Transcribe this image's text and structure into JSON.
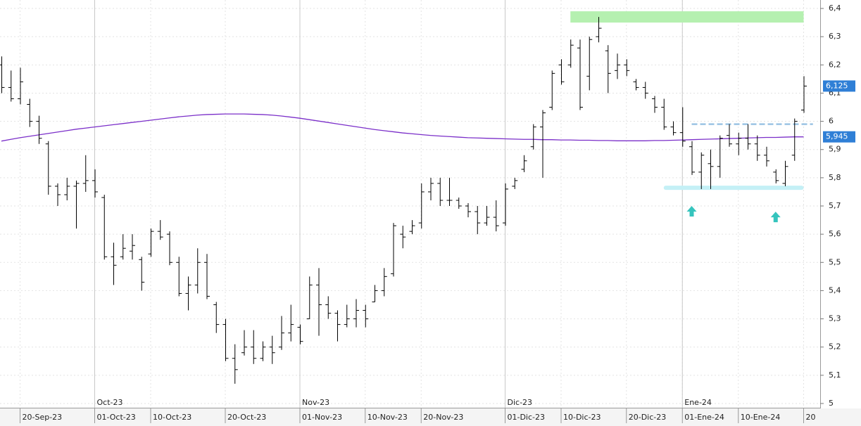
{
  "chart_data": {
    "type": "ohlc",
    "color": "#000000",
    "grid": true,
    "categories": [
      null,
      null,
      "20-Sep-23",
      null,
      null,
      null,
      null,
      null,
      null,
      null,
      "01-Oct-23",
      null,
      null,
      null,
      null,
      null,
      "10-Oct-23",
      null,
      null,
      null,
      null,
      null,
      null,
      null,
      "20-Oct-23",
      null,
      null,
      null,
      null,
      null,
      null,
      null,
      "01-Nov-23",
      null,
      null,
      null,
      null,
      null,
      null,
      "10-Nov-23",
      null,
      null,
      null,
      null,
      null,
      "20-Nov-23",
      null,
      null,
      null,
      null,
      null,
      null,
      null,
      null,
      "01-Dic-23",
      null,
      null,
      null,
      null,
      null,
      "10-Dic-23",
      null,
      null,
      null,
      null,
      null,
      null,
      "20-Dic-23",
      null,
      null,
      null,
      null,
      null,
      "01-Ene-24",
      null,
      null,
      null,
      null,
      null,
      "10-Ene-24",
      null,
      null,
      null,
      null,
      null,
      null,
      "20"
    ],
    "month_labels": [
      null,
      null,
      null,
      null,
      null,
      null,
      null,
      null,
      null,
      null,
      "Oct-23",
      null,
      null,
      null,
      null,
      null,
      null,
      null,
      null,
      null,
      null,
      null,
      null,
      null,
      null,
      null,
      null,
      null,
      null,
      null,
      null,
      null,
      "Nov-23",
      null,
      null,
      null,
      null,
      null,
      null,
      null,
      null,
      null,
      null,
      null,
      null,
      null,
      null,
      null,
      null,
      null,
      null,
      null,
      null,
      null,
      "Dic-23",
      null,
      null,
      null,
      null,
      null,
      null,
      null,
      null,
      null,
      null,
      null,
      null,
      null,
      null,
      null,
      null,
      null,
      null,
      "Ene-24",
      null,
      null,
      null,
      null,
      null,
      null,
      null,
      null,
      null,
      null,
      null,
      null,
      null
    ],
    "open": [
      6.2,
      6.12,
      6.08,
      6.06,
      6.0,
      5.92,
      5.77,
      5.74,
      5.77,
      5.78,
      5.79,
      5.73,
      5.52,
      5.52,
      5.54,
      5.51,
      5.53,
      5.61,
      5.6,
      5.5,
      5.39,
      5.42,
      5.5,
      5.35,
      5.28,
      5.16,
      5.18,
      5.2,
      5.16,
      5.2,
      5.2,
      5.25,
      5.27,
      5.3,
      5.42,
      5.35,
      5.32,
      5.28,
      5.3,
      5.33,
      5.36,
      5.4,
      5.46,
      5.6,
      5.61,
      5.64,
      5.75,
      5.78,
      5.72,
      5.72,
      5.7,
      5.68,
      5.64,
      5.66,
      5.64,
      5.77,
      5.83,
      5.91,
      5.98,
      6.05,
      6.2,
      6.2,
      6.26,
      6.16,
      6.3,
      6.25,
      6.18,
      6.2,
      6.14,
      6.12,
      6.08,
      6.05,
      5.98,
      5.96,
      5.91,
      5.82,
      5.85,
      5.84,
      5.95,
      5.92,
      5.94,
      5.92,
      5.88,
      5.82,
      5.78,
      5.88,
      6.04
    ],
    "high": [
      6.23,
      6.18,
      6.19,
      6.08,
      6.02,
      5.93,
      5.78,
      5.8,
      5.79,
      5.88,
      5.83,
      5.74,
      5.57,
      5.6,
      5.6,
      5.52,
      5.62,
      5.65,
      5.61,
      5.52,
      5.45,
      5.55,
      5.53,
      5.36,
      5.3,
      5.21,
      5.26,
      5.26,
      5.22,
      5.24,
      5.31,
      5.35,
      5.28,
      5.45,
      5.48,
      5.38,
      5.33,
      5.35,
      5.37,
      5.35,
      5.42,
      5.48,
      5.64,
      5.63,
      5.65,
      5.78,
      5.8,
      5.8,
      5.8,
      5.73,
      5.71,
      5.7,
      5.7,
      5.72,
      5.78,
      5.8,
      5.88,
      5.99,
      6.04,
      6.18,
      6.22,
      6.29,
      6.29,
      6.3,
      6.37,
      6.27,
      6.24,
      6.22,
      6.15,
      6.14,
      6.09,
      6.08,
      6.0,
      6.05,
      5.93,
      5.89,
      5.9,
      5.95,
      5.99,
      5.96,
      5.99,
      5.95,
      5.91,
      5.83,
      5.86,
      6.01,
      6.16
    ],
    "low": [
      6.1,
      6.07,
      6.06,
      5.98,
      5.92,
      5.74,
      5.7,
      5.72,
      5.62,
      5.75,
      5.73,
      5.51,
      5.42,
      5.51,
      5.51,
      5.4,
      5.52,
      5.58,
      5.49,
      5.38,
      5.33,
      5.39,
      5.37,
      5.25,
      5.15,
      5.07,
      5.17,
      5.14,
      5.15,
      5.14,
      5.19,
      5.22,
      5.21,
      5.3,
      5.24,
      5.3,
      5.22,
      5.27,
      5.27,
      5.27,
      5.36,
      5.38,
      5.45,
      5.55,
      5.6,
      5.62,
      5.72,
      5.7,
      5.7,
      5.69,
      5.66,
      5.6,
      5.63,
      5.61,
      5.63,
      5.76,
      5.82,
      5.9,
      5.8,
      6.04,
      6.13,
      6.19,
      6.04,
      6.11,
      6.28,
      6.1,
      6.15,
      6.16,
      6.11,
      6.08,
      6.03,
      5.97,
      5.95,
      5.91,
      5.81,
      5.76,
      5.76,
      5.8,
      5.91,
      5.88,
      5.9,
      5.86,
      5.84,
      5.78,
      5.77,
      5.86,
      6.03
    ],
    "close": [
      6.12,
      6.08,
      6.14,
      6.0,
      5.94,
      5.77,
      5.74,
      5.77,
      5.78,
      5.79,
      5.75,
      5.52,
      5.49,
      5.55,
      5.56,
      5.43,
      5.61,
      5.59,
      5.5,
      5.39,
      5.42,
      5.5,
      5.38,
      5.28,
      5.16,
      5.12,
      5.2,
      5.16,
      5.2,
      5.18,
      5.25,
      5.28,
      5.22,
      5.42,
      5.35,
      5.32,
      5.28,
      5.3,
      5.33,
      5.3,
      5.4,
      5.45,
      5.63,
      5.59,
      5.63,
      5.75,
      5.78,
      5.72,
      5.72,
      5.7,
      5.68,
      5.64,
      5.66,
      5.63,
      5.76,
      5.79,
      5.86,
      5.98,
      6.03,
      6.17,
      6.14,
      6.27,
      6.05,
      6.29,
      6.33,
      6.17,
      6.2,
      6.18,
      6.12,
      6.1,
      6.05,
      5.98,
      5.96,
      5.93,
      5.82,
      5.88,
      5.84,
      5.94,
      5.92,
      5.94,
      5.92,
      5.88,
      5.86,
      5.79,
      5.84,
      6.0,
      6.125
    ],
    "moving_average": [
      5.93,
      5.936,
      5.942,
      5.947,
      5.952,
      5.957,
      5.962,
      5.967,
      5.972,
      5.976,
      5.98,
      5.984,
      5.988,
      5.992,
      5.996,
      6.0,
      6.004,
      6.008,
      6.012,
      6.016,
      6.019,
      6.022,
      6.024,
      6.025,
      6.026,
      6.026,
      6.026,
      6.025,
      6.024,
      6.022,
      6.019,
      6.015,
      6.011,
      6.006,
      6.001,
      5.996,
      5.991,
      5.986,
      5.981,
      5.976,
      5.971,
      5.967,
      5.963,
      5.959,
      5.956,
      5.953,
      5.95,
      5.948,
      5.946,
      5.944,
      5.942,
      5.941,
      5.94,
      5.939,
      5.938,
      5.937,
      5.936,
      5.936,
      5.935,
      5.935,
      5.934,
      5.934,
      5.933,
      5.933,
      5.932,
      5.932,
      5.931,
      5.931,
      5.931,
      5.931,
      5.932,
      5.932,
      5.933,
      5.934,
      5.935,
      5.936,
      5.937,
      5.938,
      5.939,
      5.94,
      5.941,
      5.942,
      5.943,
      5.943,
      5.944,
      5.945,
      5.945
    ],
    "moving_average_color": "#7b2fc9",
    "ylim": [
      4.985,
      6.43
    ],
    "yticks": [
      {
        "value": 6.4,
        "label": "6,4"
      },
      {
        "value": 6.3,
        "label": "6,3"
      },
      {
        "value": 6.2,
        "label": "6,2"
      },
      {
        "value": 6.1,
        "label": "6,1"
      },
      {
        "value": 6,
        "label": "6"
      },
      {
        "value": 5.9,
        "label": "5,9"
      },
      {
        "value": 5.8,
        "label": "5,8"
      },
      {
        "value": 5.7,
        "label": "5,7"
      },
      {
        "value": 5.6,
        "label": "5,6"
      },
      {
        "value": 5.5,
        "label": "5,5"
      },
      {
        "value": 5.4,
        "label": "5,4"
      },
      {
        "value": 5.3,
        "label": "5,3"
      },
      {
        "value": 5.2,
        "label": "5,2"
      },
      {
        "value": 5.1,
        "label": "5,1"
      },
      5
    ],
    "price_labels": [
      {
        "value": 6.125,
        "label": "6,125"
      },
      {
        "value": 5.945,
        "label": "5,945"
      }
    ],
    "price_label_color": "#2f7fd6",
    "resistance_zone": {
      "start": 61,
      "end": 86,
      "low": 6.35,
      "high": 6.39,
      "color": "#b5f0b0"
    },
    "support_band": {
      "start": 71,
      "end": 86,
      "low": 5.757,
      "high": 5.772,
      "color": "#c4f0f6"
    },
    "resistance_line": {
      "start": 74,
      "end": 87,
      "value": 5.99,
      "color": "#9cc4e4"
    },
    "arrows": [
      {
        "index": 74,
        "value": 5.68
      },
      {
        "index": 83,
        "value": 5.66
      }
    ],
    "arrow_color": "#35c4bd"
  }
}
